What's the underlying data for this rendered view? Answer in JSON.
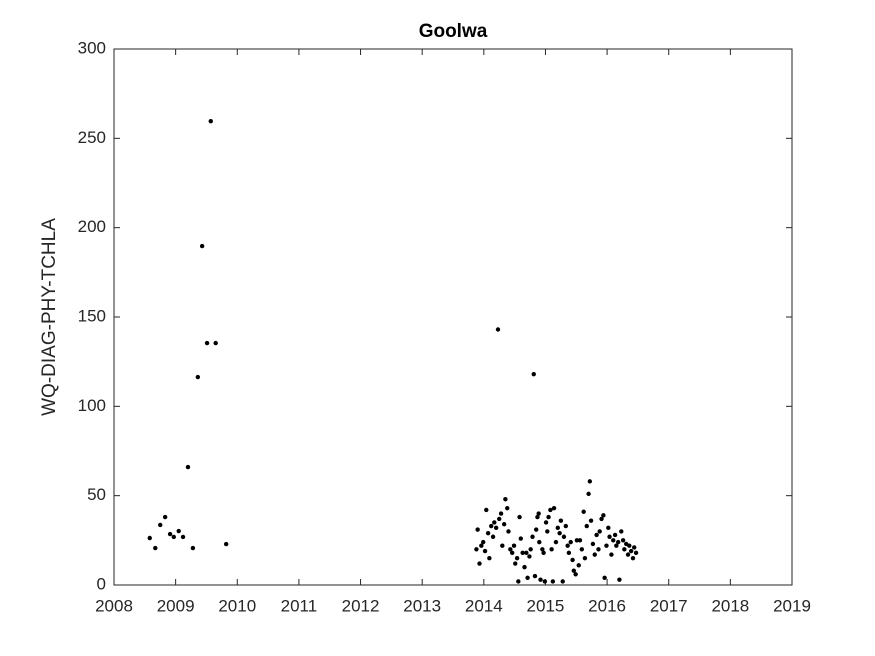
{
  "chart_data": {
    "type": "scatter",
    "title": "Goolwa",
    "y_label": "WQ-DIAG-PHY-TCHLA",
    "color": "#000000",
    "x": [
      2008.58,
      2008.67,
      2008.75,
      2008.83,
      2008.91,
      2008.97,
      2009.05,
      2009.12,
      2009.2,
      2009.28,
      2009.36,
      2009.43,
      2009.51,
      2009.57,
      2009.65,
      2009.82,
      2013.88,
      2013.9,
      2013.93,
      2013.96,
      2013.99,
      2014.02,
      2014.04,
      2014.07,
      2014.09,
      2014.12,
      2014.15,
      2014.17,
      2014.2,
      2014.23,
      2014.25,
      2014.28,
      2014.3,
      2014.33,
      2014.35,
      2014.38,
      2014.4,
      2014.43,
      2014.46,
      2014.49,
      2014.51,
      2014.54,
      2014.56,
      2014.58,
      2014.6,
      2014.63,
      2014.66,
      2014.69,
      2014.71,
      2014.74,
      2014.76,
      2014.79,
      2014.81,
      2014.83,
      2014.85,
      2014.87,
      2014.89,
      2014.9,
      2014.92,
      2014.95,
      2014.97,
      2014.99,
      2015.01,
      2015.03,
      2015.05,
      2015.08,
      2015.1,
      2015.12,
      2015.14,
      2015.17,
      2015.2,
      2015.23,
      2015.25,
      2015.28,
      2015.3,
      2015.33,
      2015.36,
      2015.38,
      2015.41,
      2015.44,
      2015.46,
      2015.49,
      2015.51,
      2015.54,
      2015.56,
      2015.59,
      2015.62,
      2015.64,
      2015.67,
      2015.7,
      2015.72,
      2015.74,
      2015.77,
      2015.8,
      2015.83,
      2015.86,
      2015.88,
      2015.91,
      2015.94,
      2015.96,
      2015.99,
      2016.02,
      2016.04,
      2016.07,
      2016.1,
      2016.13,
      2016.15,
      2016.18,
      2016.2,
      2016.23,
      2016.26,
      2016.28,
      2016.31,
      2016.34,
      2016.36,
      2016.39,
      2016.42,
      2016.44,
      2016.47
    ],
    "values": [
      26.3,
      20.7,
      33.6,
      38,
      28.5,
      26.9,
      30.2,
      26.9,
      66,
      20.7,
      116.4,
      189.7,
      135.4,
      259.6,
      135.4,
      22.9,
      20,
      31,
      12,
      22,
      24,
      19,
      42,
      29,
      15,
      33,
      27,
      35,
      32,
      143,
      37,
      40,
      22,
      34,
      48,
      43,
      30,
      20,
      18,
      22,
      12,
      15,
      2,
      38,
      26,
      18,
      10,
      18,
      4,
      16,
      20,
      27,
      118,
      5,
      31,
      38,
      40,
      24,
      3,
      20,
      18,
      2,
      35,
      30,
      38,
      42,
      20,
      2,
      43,
      24,
      32,
      29,
      36,
      2,
      27,
      33,
      22,
      18,
      24,
      14,
      8,
      6,
      25,
      11,
      25,
      20,
      41,
      15,
      33,
      51,
      58,
      36,
      23,
      17,
      28,
      20,
      30,
      37,
      39,
      4,
      22,
      32,
      27,
      17,
      25,
      28,
      22,
      24,
      3,
      30,
      25,
      20,
      23,
      17,
      22,
      19,
      15,
      21,
      18
    ],
    "xlim": [
      2008,
      2019
    ],
    "xticks": [
      2008,
      2009,
      2010,
      2011,
      2012,
      2013,
      2014,
      2015,
      2016,
      2017,
      2018,
      2019
    ],
    "ylim": [
      0,
      300
    ],
    "yticks": [
      0,
      50,
      100,
      150,
      200,
      250,
      300
    ],
    "grid": false
  }
}
